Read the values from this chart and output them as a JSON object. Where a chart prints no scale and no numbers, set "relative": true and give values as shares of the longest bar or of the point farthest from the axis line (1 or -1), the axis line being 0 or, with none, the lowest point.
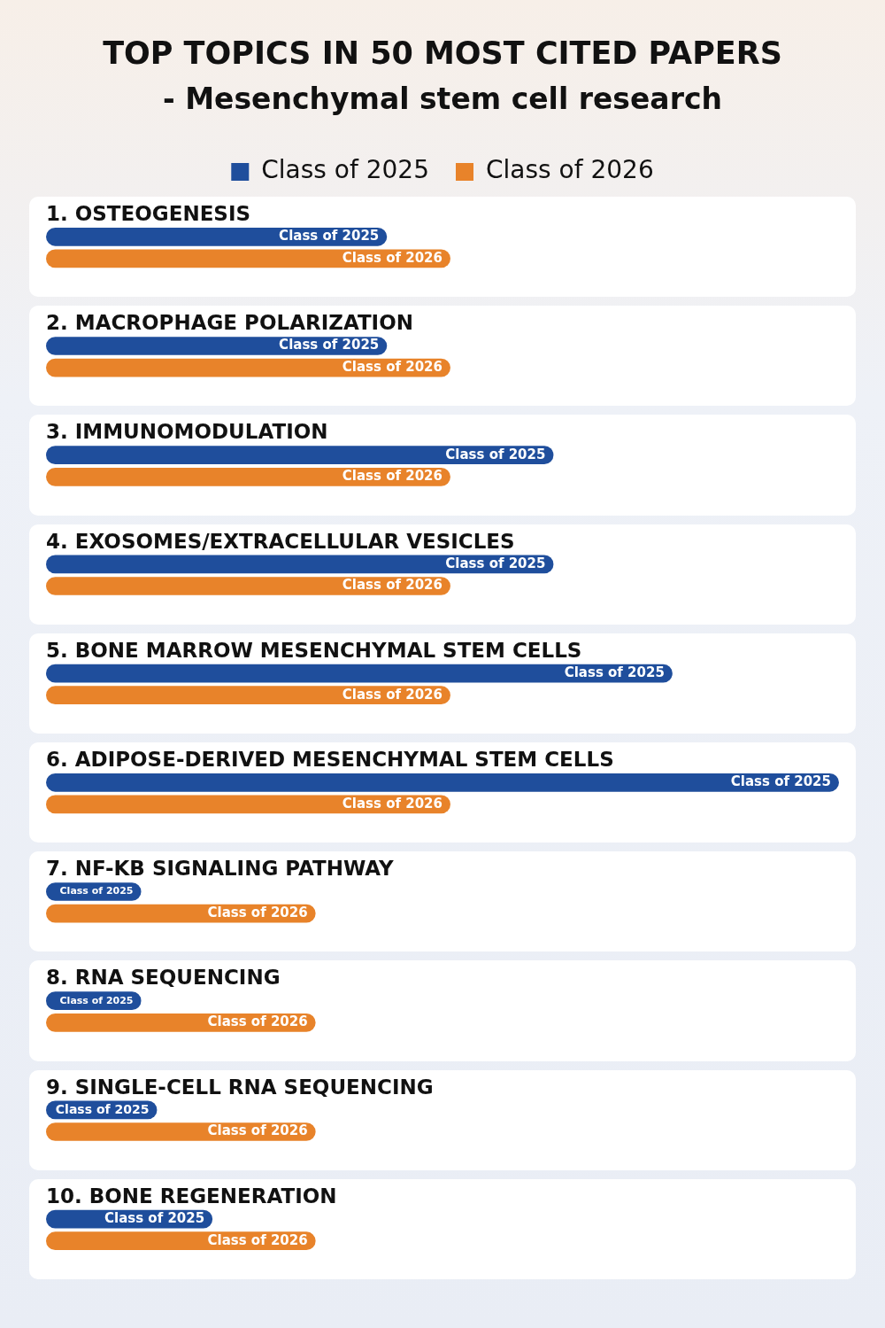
{
  "chart_data": {
    "type": "bar",
    "orientation": "horizontal",
    "relative": true,
    "title": "TOP TOPICS IN 50 MOST CITED PAPERS",
    "subtitle": "- Mesenchymal stem cell research",
    "legend": "top",
    "categories": [
      "1. OSTEOGENESIS",
      "2. MACROPHAGE POLARIZATION",
      "3. IMMUNOMODULATION",
      "4. EXOSOMES/EXTRACELLULAR VESICLES",
      "5. BONE MARROW MESENCHYMAL STEM CELLS",
      "6. ADIPOSE-DERIVED MESENCHYMAL STEM CELLS",
      "7. NF-KB SIGNALING PATHWAY",
      "8. RNA SEQUENCING",
      "9. SINGLE-CELL RNA SEQUENCING",
      "10. BONE REGENERATION"
    ],
    "series": [
      {
        "name": "Class of 2025",
        "color": "#1f4e9c",
        "values": [
          0.43,
          0.43,
          0.64,
          0.64,
          0.79,
          1,
          0.12,
          0.12,
          0.14,
          0.21
        ]
      },
      {
        "name": "Class of 2026",
        "color": "#e8832a",
        "values": [
          0.51,
          0.51,
          0.51,
          0.51,
          0.51,
          0.51,
          0.34,
          0.34,
          0.34,
          0.34
        ]
      }
    ]
  }
}
